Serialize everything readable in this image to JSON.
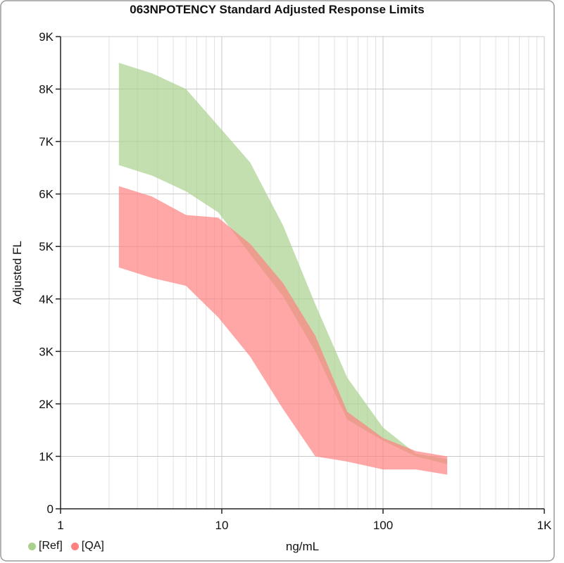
{
  "chart_data": {
    "type": "area",
    "title": "063NPOTENCY Standard Adjusted Response Limits",
    "xlabel": "ng/mL",
    "ylabel": "Adjusted FL",
    "x_scale": "log",
    "xlim": [
      1,
      1000
    ],
    "ylim": [
      0,
      9000
    ],
    "x_ticks": [
      1,
      10,
      100,
      1000
    ],
    "x_tick_labels": [
      "1",
      "10",
      "100",
      "1K"
    ],
    "y_ticks": [
      0,
      1000,
      2000,
      3000,
      4000,
      5000,
      6000,
      7000,
      8000,
      9000
    ],
    "y_tick_labels": [
      "0",
      "1K",
      "2K",
      "3K",
      "4K",
      "5K",
      "6K",
      "7K",
      "8K",
      "9K"
    ],
    "grid": true,
    "legend_position": "bottom-left",
    "series": [
      {
        "name": "[Ref]",
        "color": "#a9d18e",
        "x": [
          2.3,
          3.7,
          6,
          9.5,
          15,
          24,
          38,
          60,
          100,
          160,
          250
        ],
        "upper": [
          8500,
          8300,
          8000,
          7300,
          6600,
          5400,
          3900,
          2500,
          1550,
          1050,
          950
        ],
        "lower": [
          6550,
          6350,
          6050,
          5650,
          4850,
          4050,
          3000,
          1700,
          1300,
          1000,
          850
        ]
      },
      {
        "name": "[QA]",
        "color": "#ff8080",
        "x": [
          2.3,
          3.7,
          6,
          9.5,
          15,
          24,
          38,
          60,
          100,
          160,
          250
        ],
        "upper": [
          6150,
          5950,
          5600,
          5550,
          5050,
          4300,
          3300,
          1850,
          1350,
          1100,
          1000
        ],
        "lower": [
          4600,
          4400,
          4250,
          3650,
          2900,
          1900,
          1000,
          900,
          750,
          750,
          650
        ]
      }
    ]
  }
}
